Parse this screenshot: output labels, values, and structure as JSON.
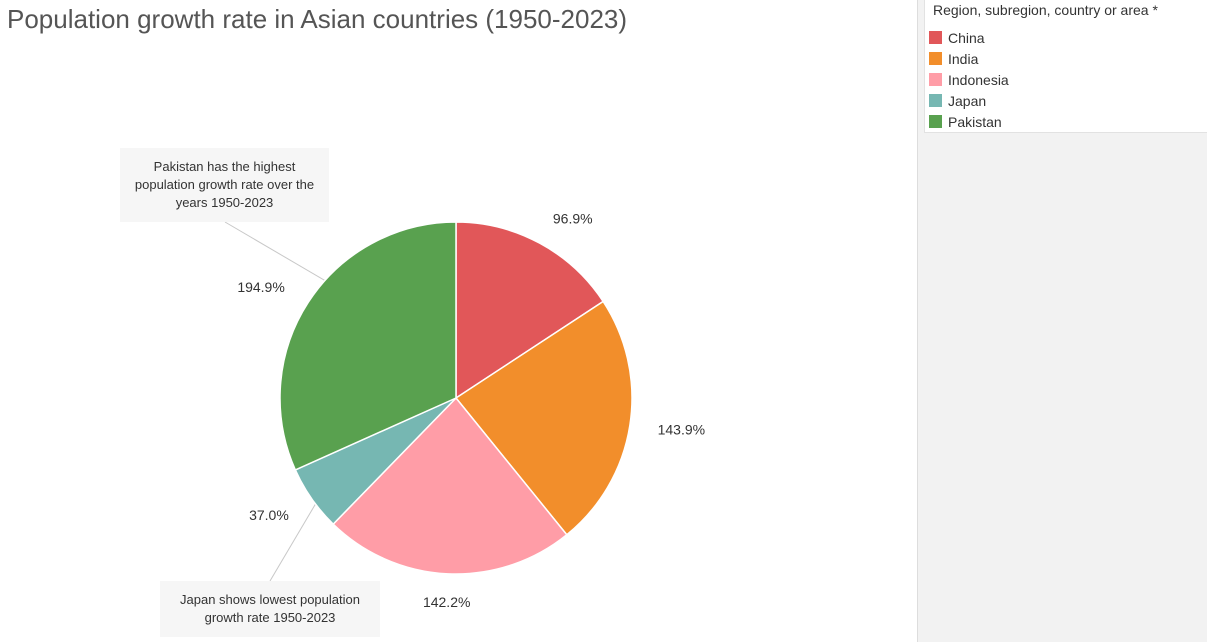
{
  "title": "Population growth rate in Asian countries (1950-2023)",
  "legend": {
    "title": "Region, subregion, country or area *",
    "items": [
      {
        "label": "China",
        "color": "#E15759"
      },
      {
        "label": "India",
        "color": "#F28E2B"
      },
      {
        "label": "Indonesia",
        "color": "#FF9DA7"
      },
      {
        "label": "Japan",
        "color": "#76B7B2"
      },
      {
        "label": "Pakistan",
        "color": "#59A14F"
      }
    ]
  },
  "annotations": {
    "pakistan": "Pakistan has the highest population growth rate over the years 1950-2023",
    "japan": "Japan shows lowest population growth rate 1950-2023"
  },
  "chart_data": {
    "type": "pie",
    "title": "Population growth rate in Asian countries (1950-2023)",
    "categories": [
      "China",
      "India",
      "Indonesia",
      "Japan",
      "Pakistan"
    ],
    "values": [
      96.9,
      143.9,
      142.2,
      37.0,
      194.9
    ],
    "labels": [
      "96.9%",
      "143.9%",
      "142.2%",
      "37.0%",
      "194.9%"
    ],
    "colors": [
      "#E15759",
      "#F28E2B",
      "#FF9DA7",
      "#76B7B2",
      "#59A14F"
    ],
    "start_angle": "12 o'clock",
    "direction": "clockwise",
    "legend_position": "top-right"
  }
}
